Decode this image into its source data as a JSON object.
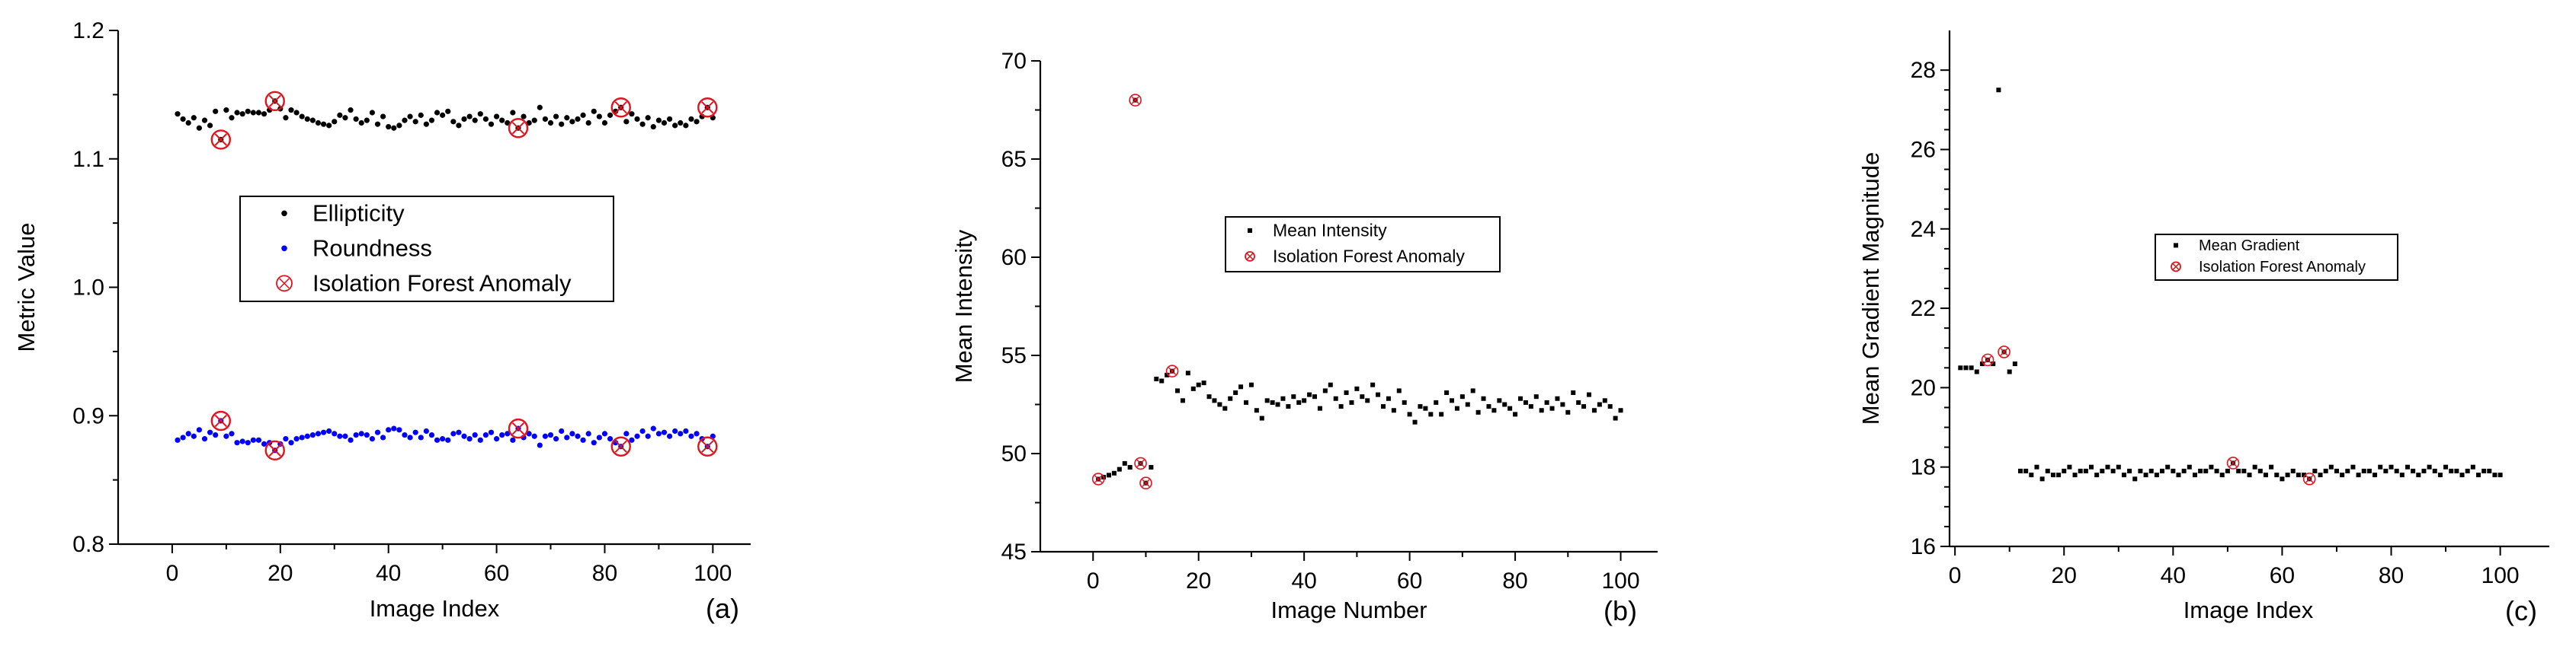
{
  "chart_data": [
    {
      "type": "scatter",
      "panel_label": "(a)",
      "xlabel": "Image Index",
      "ylabel": "Metric Value",
      "xlim": [
        -10,
        107
      ],
      "ylim": [
        0.8,
        1.2
      ],
      "xticks": [
        0,
        20,
        40,
        60,
        80,
        100
      ],
      "yticks": [
        0.8,
        0.9,
        1.0,
        1.1,
        1.2
      ],
      "ytick_labels": [
        "0.8",
        "0.9",
        "1.0",
        "1.1",
        "1.2"
      ],
      "legend": [
        "Ellipticity",
        "Roundness",
        "Isolation Forest Anomaly"
      ],
      "colors": {
        "series_1": "#000000",
        "series_2": "#0000ff",
        "anomaly": "#e0141e"
      },
      "series": [
        {
          "name": "Ellipticity",
          "x": [
            1,
            2,
            3,
            4,
            5,
            6,
            7,
            8,
            9,
            10,
            11,
            12,
            13,
            14,
            15,
            16,
            17,
            18,
            19,
            20,
            21,
            22,
            23,
            24,
            25,
            26,
            27,
            28,
            29,
            30,
            31,
            32,
            33,
            34,
            35,
            36,
            37,
            38,
            39,
            40,
            41,
            42,
            43,
            44,
            45,
            46,
            47,
            48,
            49,
            50,
            51,
            52,
            53,
            54,
            55,
            56,
            57,
            58,
            59,
            60,
            61,
            62,
            63,
            64,
            65,
            66,
            67,
            68,
            69,
            70,
            71,
            72,
            73,
            74,
            75,
            76,
            77,
            78,
            79,
            80,
            81,
            82,
            83,
            84,
            85,
            86,
            87,
            88,
            89,
            90,
            91,
            92,
            93,
            94,
            95,
            96,
            97,
            98,
            99,
            100
          ],
          "y": [
            1.135,
            1.131,
            1.128,
            1.132,
            1.124,
            1.13,
            1.126,
            1.137,
            1.115,
            1.138,
            1.132,
            1.136,
            1.135,
            1.137,
            1.136,
            1.136,
            1.135,
            1.138,
            1.145,
            1.139,
            1.132,
            1.138,
            1.136,
            1.133,
            1.131,
            1.13,
            1.128,
            1.127,
            1.126,
            1.129,
            1.134,
            1.132,
            1.138,
            1.131,
            1.128,
            1.13,
            1.136,
            1.127,
            1.133,
            1.125,
            1.124,
            1.126,
            1.13,
            1.133,
            1.129,
            1.134,
            1.127,
            1.13,
            1.136,
            1.134,
            1.137,
            1.129,
            1.126,
            1.131,
            1.133,
            1.13,
            1.135,
            1.131,
            1.127,
            1.133,
            1.13,
            1.128,
            1.136,
            1.124,
            1.133,
            1.128,
            1.13,
            1.14,
            1.131,
            1.128,
            1.133,
            1.127,
            1.132,
            1.129,
            1.131,
            1.134,
            1.128,
            1.137,
            1.133,
            1.128,
            1.134,
            1.137,
            1.14,
            1.129,
            1.135,
            1.131,
            1.127,
            1.132,
            1.125,
            1.13,
            1.128,
            1.131,
            1.126,
            1.128,
            1.126,
            1.131,
            1.129,
            1.133,
            1.14,
            1.132
          ]
        },
        {
          "name": "Roundness",
          "x": [
            1,
            2,
            3,
            4,
            5,
            6,
            7,
            8,
            9,
            10,
            11,
            12,
            13,
            14,
            15,
            16,
            17,
            18,
            19,
            20,
            21,
            22,
            23,
            24,
            25,
            26,
            27,
            28,
            29,
            30,
            31,
            32,
            33,
            34,
            35,
            36,
            37,
            38,
            39,
            40,
            41,
            42,
            43,
            44,
            45,
            46,
            47,
            48,
            49,
            50,
            51,
            52,
            53,
            54,
            55,
            56,
            57,
            58,
            59,
            60,
            61,
            62,
            63,
            64,
            65,
            66,
            67,
            68,
            69,
            70,
            71,
            72,
            73,
            74,
            75,
            76,
            77,
            78,
            79,
            80,
            81,
            82,
            83,
            84,
            85,
            86,
            87,
            88,
            89,
            90,
            91,
            92,
            93,
            94,
            95,
            96,
            97,
            98,
            99,
            100
          ],
          "y": [
            0.881,
            0.883,
            0.886,
            0.884,
            0.889,
            0.882,
            0.887,
            0.885,
            0.896,
            0.884,
            0.886,
            0.879,
            0.88,
            0.879,
            0.881,
            0.881,
            0.878,
            0.879,
            0.873,
            0.878,
            0.882,
            0.879,
            0.882,
            0.883,
            0.884,
            0.885,
            0.886,
            0.887,
            0.888,
            0.886,
            0.884,
            0.884,
            0.881,
            0.885,
            0.886,
            0.885,
            0.882,
            0.887,
            0.883,
            0.889,
            0.89,
            0.889,
            0.885,
            0.883,
            0.887,
            0.883,
            0.888,
            0.885,
            0.881,
            0.882,
            0.881,
            0.886,
            0.887,
            0.884,
            0.882,
            0.885,
            0.881,
            0.885,
            0.887,
            0.882,
            0.885,
            0.886,
            0.881,
            0.89,
            0.883,
            0.886,
            0.884,
            0.877,
            0.884,
            0.885,
            0.882,
            0.888,
            0.883,
            0.886,
            0.884,
            0.881,
            0.886,
            0.879,
            0.883,
            0.886,
            0.882,
            0.879,
            0.876,
            0.886,
            0.881,
            0.884,
            0.888,
            0.884,
            0.89,
            0.886,
            0.887,
            0.884,
            0.888,
            0.886,
            0.888,
            0.884,
            0.886,
            0.882,
            0.876,
            0.884
          ]
        },
        {
          "name": "Isolation Forest Anomaly",
          "x": [
            9,
            19,
            64,
            83,
            99,
            9,
            19,
            64,
            83,
            99
          ],
          "y": [
            1.115,
            1.145,
            1.124,
            1.14,
            1.14,
            0.896,
            0.873,
            0.89,
            0.876,
            0.876
          ]
        }
      ]
    },
    {
      "type": "scatter",
      "panel_label": "(b)",
      "xlabel": "Image Number",
      "ylabel": "Mean Intensity",
      "xlim": [
        -10,
        107
      ],
      "ylim": [
        45,
        70
      ],
      "xticks": [
        0,
        20,
        40,
        60,
        80,
        100
      ],
      "yticks": [
        45,
        50,
        55,
        60,
        65,
        70
      ],
      "ytick_labels": [
        "45",
        "50",
        "55",
        "60",
        "65",
        "70"
      ],
      "legend": [
        "Mean Intensity",
        "Isolation Forest Anomaly"
      ],
      "colors": {
        "series_1": "#000000",
        "anomaly": "#e0141e"
      },
      "series": [
        {
          "name": "Mean Intensity",
          "x": [
            1,
            2,
            3,
            4,
            5,
            6,
            7,
            8,
            9,
            10,
            11,
            12,
            13,
            14,
            15,
            16,
            17,
            18,
            19,
            20,
            21,
            22,
            23,
            24,
            25,
            26,
            27,
            28,
            29,
            30,
            31,
            32,
            33,
            34,
            35,
            36,
            37,
            38,
            39,
            40,
            41,
            42,
            43,
            44,
            45,
            46,
            47,
            48,
            49,
            50,
            51,
            52,
            53,
            54,
            55,
            56,
            57,
            58,
            59,
            60,
            61,
            62,
            63,
            64,
            65,
            66,
            67,
            68,
            69,
            70,
            71,
            72,
            73,
            74,
            75,
            76,
            77,
            78,
            79,
            80,
            81,
            82,
            83,
            84,
            85,
            86,
            87,
            88,
            89,
            90,
            91,
            92,
            93,
            94,
            95,
            96,
            97,
            98,
            99,
            100
          ],
          "y": [
            48.7,
            48.8,
            48.9,
            49.0,
            49.2,
            49.5,
            49.3,
            68.0,
            49.5,
            48.5,
            49.3,
            53.8,
            53.7,
            54.0,
            54.2,
            53.2,
            52.7,
            54.1,
            53.3,
            53.5,
            53.6,
            52.9,
            52.7,
            52.5,
            52.3,
            52.8,
            53.1,
            53.4,
            52.6,
            53.5,
            52.2,
            51.8,
            52.7,
            52.6,
            52.5,
            52.8,
            52.4,
            52.9,
            52.6,
            52.7,
            53.0,
            52.9,
            52.3,
            53.2,
            53.5,
            52.8,
            52.4,
            53.1,
            52.6,
            53.3,
            52.9,
            52.7,
            53.5,
            53.0,
            52.4,
            52.8,
            52.2,
            53.2,
            52.6,
            52.0,
            51.6,
            52.4,
            52.3,
            52.0,
            52.6,
            52.0,
            53.1,
            52.7,
            52.3,
            52.9,
            52.5,
            53.2,
            52.1,
            52.8,
            52.4,
            52.2,
            52.7,
            52.5,
            52.3,
            52.0,
            52.8,
            52.6,
            52.4,
            52.9,
            52.2,
            52.6,
            52.3,
            52.8,
            52.5,
            52.1,
            53.1,
            52.6,
            52.4,
            53.0,
            52.2,
            52.5,
            52.7,
            52.4,
            51.8,
            52.2
          ]
        },
        {
          "name": "Isolation Forest Anomaly",
          "x": [
            1,
            8,
            9,
            10,
            15
          ],
          "y": [
            48.7,
            68.0,
            49.5,
            48.5,
            54.2
          ]
        }
      ]
    },
    {
      "type": "scatter",
      "panel_label": "(c)",
      "xlabel": "Image Index",
      "ylabel": "Mean Gradient Magnitude",
      "xlim": [
        -1,
        109
      ],
      "ylim": [
        16,
        29
      ],
      "xticks": [
        0,
        20,
        40,
        60,
        80,
        100
      ],
      "yticks": [
        16,
        18,
        20,
        22,
        24,
        26,
        28
      ],
      "ytick_labels": [
        "16",
        "18",
        "20",
        "22",
        "24",
        "26",
        "28"
      ],
      "legend": [
        "Mean Gradient",
        "Isolation Forest Anomaly"
      ],
      "colors": {
        "series_1": "#000000",
        "anomaly": "#e0141e"
      },
      "series": [
        {
          "name": "Mean Gradient",
          "x": [
            1,
            2,
            3,
            4,
            5,
            6,
            7,
            8,
            9,
            10,
            11,
            12,
            13,
            14,
            15,
            16,
            17,
            18,
            19,
            20,
            21,
            22,
            23,
            24,
            25,
            26,
            27,
            28,
            29,
            30,
            31,
            32,
            33,
            34,
            35,
            36,
            37,
            38,
            39,
            40,
            41,
            42,
            43,
            44,
            45,
            46,
            47,
            48,
            49,
            50,
            51,
            52,
            53,
            54,
            55,
            56,
            57,
            58,
            59,
            60,
            61,
            62,
            63,
            64,
            65,
            66,
            67,
            68,
            69,
            70,
            71,
            72,
            73,
            74,
            75,
            76,
            77,
            78,
            79,
            80,
            81,
            82,
            83,
            84,
            85,
            86,
            87,
            88,
            89,
            90,
            91,
            92,
            93,
            94,
            95,
            96,
            97,
            98,
            99,
            100
          ],
          "y": [
            20.5,
            20.5,
            20.5,
            20.4,
            20.6,
            20.7,
            20.6,
            27.5,
            20.9,
            20.4,
            20.6,
            17.9,
            17.9,
            17.8,
            18.0,
            17.7,
            17.9,
            17.8,
            17.8,
            17.9,
            18.0,
            17.8,
            17.9,
            17.9,
            18.0,
            17.8,
            17.9,
            18.0,
            17.9,
            18.0,
            17.8,
            17.9,
            17.7,
            17.9,
            17.8,
            17.9,
            17.8,
            17.9,
            18.0,
            17.9,
            17.8,
            17.9,
            18.0,
            17.8,
            17.9,
            17.9,
            18.0,
            17.9,
            17.8,
            17.9,
            18.1,
            17.9,
            17.9,
            17.8,
            18.0,
            17.9,
            17.8,
            18.0,
            17.8,
            17.7,
            17.8,
            17.9,
            17.8,
            17.8,
            17.7,
            17.9,
            17.8,
            17.9,
            18.0,
            17.9,
            17.8,
            17.9,
            18.0,
            17.8,
            17.9,
            17.9,
            17.8,
            18.0,
            17.9,
            18.0,
            17.9,
            17.8,
            18.0,
            17.9,
            17.8,
            17.9,
            18.0,
            17.9,
            17.8,
            18.0,
            17.9,
            17.9,
            17.8,
            17.9,
            18.0,
            17.8,
            17.9,
            17.9,
            17.8,
            17.8
          ]
        },
        {
          "name": "Isolation Forest Anomaly",
          "x": [
            6,
            9,
            51,
            65
          ],
          "y": [
            20.7,
            20.9,
            18.1,
            17.7
          ]
        }
      ]
    }
  ]
}
